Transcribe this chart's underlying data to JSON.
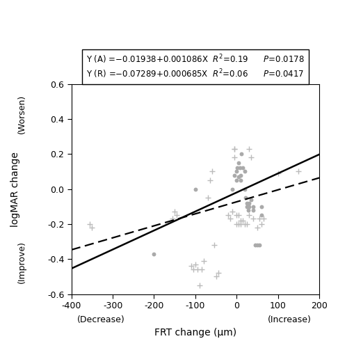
{
  "slope_A": 0.001086,
  "intercept_A": -0.01938,
  "slope_R": 0.000685,
  "intercept_R": -0.07289,
  "xlabel": "FRT change (μm)",
  "ylabel": "logMAR change",
  "xlabel_left": "(Decrease)",
  "xlabel_right": "(Increase)",
  "ylabel_top": "(Worsen)",
  "ylabel_bottom": "(Improve)",
  "xlim": [
    -400,
    200
  ],
  "ylim": [
    -0.6,
    0.6
  ],
  "xticks": [
    -400,
    -300,
    -200,
    -100,
    0,
    100,
    200
  ],
  "yticks": [
    -0.6,
    -0.4,
    -0.2,
    0.0,
    0.2,
    0.4,
    0.6
  ],
  "dots_x": [
    -200,
    -100,
    -10,
    -5,
    0,
    0,
    2,
    5,
    5,
    8,
    10,
    10,
    12,
    15,
    20,
    20,
    22,
    25,
    25,
    28,
    30,
    30,
    35,
    40,
    40,
    45,
    50,
    55,
    60,
    60
  ],
  "dots_y": [
    -0.37,
    0.0,
    0.0,
    0.08,
    0.1,
    0.05,
    0.12,
    0.15,
    0.07,
    0.12,
    0.08,
    0.05,
    0.2,
    0.12,
    0.1,
    0.0,
    -0.05,
    -0.1,
    -0.08,
    -0.12,
    -0.1,
    -0.08,
    -0.06,
    -0.12,
    -0.1,
    -0.32,
    -0.32,
    -0.32,
    -0.15,
    -0.1
  ],
  "plus_x": [
    -355,
    -350,
    -155,
    -150,
    -145,
    -110,
    -105,
    -100,
    -95,
    -90,
    -85,
    -80,
    -55,
    -50,
    -45,
    -20,
    -15,
    -10,
    -5,
    -5,
    -5,
    0,
    0,
    5,
    5,
    10,
    10,
    15,
    20,
    25,
    30,
    30,
    35,
    40,
    50,
    55,
    60,
    65,
    100,
    150,
    -70,
    -65,
    -60
  ],
  "plus_y": [
    -0.2,
    -0.22,
    -0.17,
    -0.13,
    -0.15,
    -0.44,
    -0.46,
    -0.43,
    -0.46,
    -0.55,
    -0.46,
    -0.41,
    -0.32,
    -0.5,
    -0.48,
    -0.15,
    -0.17,
    -0.13,
    0.23,
    0.18,
    0.23,
    -0.15,
    -0.2,
    -0.15,
    -0.2,
    -0.2,
    -0.18,
    -0.18,
    -0.2,
    -0.2,
    -0.15,
    0.23,
    0.18,
    -0.17,
    -0.22,
    -0.17,
    -0.2,
    -0.17,
    0.09,
    0.1,
    -0.05,
    0.05,
    0.1
  ],
  "dot_color": "#aaaaaa",
  "plus_color": "#bbbbbb",
  "line_A_color": "#000000",
  "line_R_color": "#000000",
  "background_color": "#ffffff",
  "eq_line1": "Y (A) =−0.01938+0.001086X",
  "eq_r2_1": "R²=0.19",
  "eq_p1": "P=0.0178",
  "eq_line2": "Y (R) =−0.07289+0.000685X",
  "eq_r2_2": "R²=0.06",
  "eq_p2": "P=0.0417"
}
